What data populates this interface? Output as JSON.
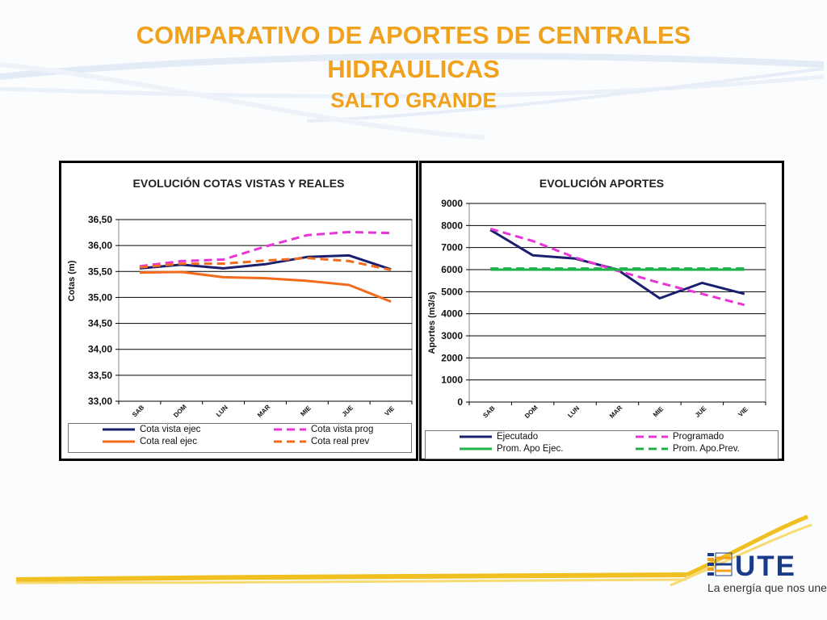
{
  "slide": {
    "title_line1": "COMPARATIVO DE APORTES DE CENTRALES",
    "title_line2": "HIDRAULICAS",
    "subtitle": "SALTO GRANDE",
    "title_color": "#f0a21c",
    "tagline": "La energía que nos une",
    "logo_text": "UTE"
  },
  "chart_data": [
    {
      "type": "line",
      "title": "EVOLUCIÓN  COTAS VISTAS Y REALES",
      "xlabel": "",
      "ylabel": "Cotas (m)",
      "categories": [
        "SAB",
        "DOM",
        "LUN",
        "MAR",
        "MIE",
        "JUE",
        "VIE"
      ],
      "ylim": [
        33.0,
        36.5
      ],
      "yticks": [
        33.0,
        33.5,
        34.0,
        34.5,
        35.0,
        35.5,
        36.0,
        36.5
      ],
      "ytick_labels": [
        "33,00",
        "33,50",
        "34,00",
        "34,50",
        "35,00",
        "35,50",
        "36,00",
        "36,50"
      ],
      "grid": true,
      "legend_position": "bottom",
      "series": [
        {
          "name": "Cota vista ejec",
          "color": "#1a1f6e",
          "dash": "solid",
          "values": [
            35.56,
            35.63,
            35.56,
            35.64,
            35.78,
            35.81,
            35.54
          ]
        },
        {
          "name": "Cota vista prog",
          "color": "#e835d6",
          "dash": "dashed",
          "values": [
            35.6,
            35.7,
            35.73,
            35.98,
            36.2,
            36.26,
            36.24
          ]
        },
        {
          "name": "Cota real ejec",
          "color": "#f26b1d",
          "dash": "solid",
          "values": [
            35.48,
            35.49,
            35.39,
            35.37,
            35.32,
            35.24,
            34.92
          ]
        },
        {
          "name": "Cota real prev",
          "color": "#f26b1d",
          "dash": "dashed",
          "values": [
            35.58,
            35.65,
            35.65,
            35.71,
            35.76,
            35.7,
            35.53
          ]
        }
      ]
    },
    {
      "type": "line",
      "title": "EVOLUCIÓN  APORTES",
      "xlabel": "",
      "ylabel": "Aportes (m3/s)",
      "categories": [
        "SAB",
        "DOM",
        "LUN",
        "MAR",
        "MIE",
        "JUE",
        "VIE"
      ],
      "ylim": [
        0,
        9000
      ],
      "yticks": [
        0,
        1000,
        2000,
        3000,
        4000,
        5000,
        6000,
        7000,
        8000,
        9000
      ],
      "ytick_labels": [
        "0",
        "1000",
        "2000",
        "3000",
        "4000",
        "5000",
        "6000",
        "7000",
        "8000",
        "9000"
      ],
      "grid": true,
      "legend_position": "bottom",
      "series": [
        {
          "name": "Ejecutado",
          "color": "#1a1f6e",
          "dash": "solid",
          "values": [
            7800,
            6650,
            6500,
            6000,
            4700,
            5400,
            4900
          ]
        },
        {
          "name": "Programado",
          "color": "#e835d6",
          "dash": "dashed",
          "values": [
            7850,
            7300,
            6550,
            5950,
            5400,
            4900,
            4400
          ]
        },
        {
          "name": "Prom. Apo Ejec.",
          "color": "#1fb24a",
          "dash": "solid",
          "values": [
            6000,
            6000,
            6000,
            6000,
            6000,
            6000,
            6000
          ]
        },
        {
          "name": "Prom. Apo.Prev.",
          "color": "#1fb24a",
          "dash": "dashed",
          "values": [
            6050,
            6050,
            6050,
            6050,
            6050,
            6050,
            6050
          ]
        }
      ]
    }
  ]
}
